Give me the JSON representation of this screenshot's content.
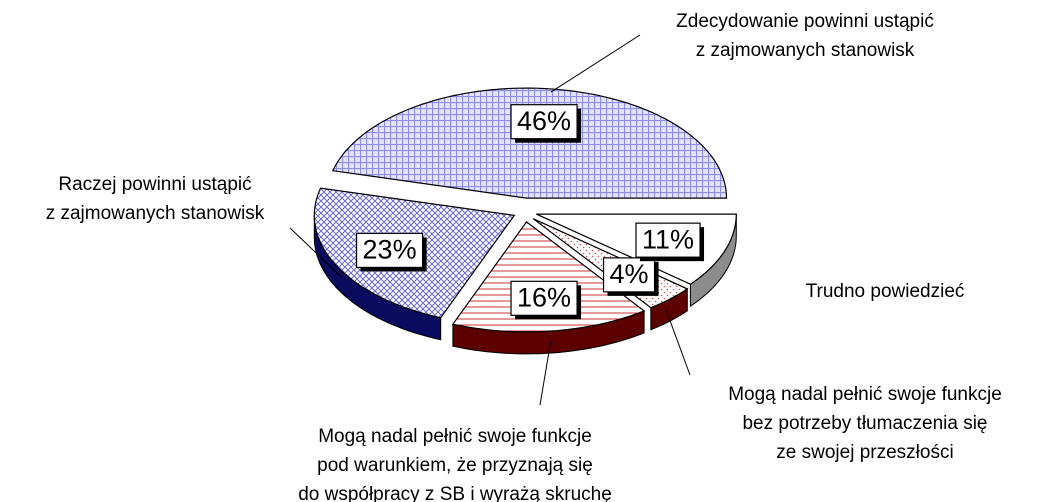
{
  "chart_data": {
    "type": "pie",
    "categories": [
      "Zdecydowanie powinni ustąpić\nz zajmowanych stanowisk",
      "Raczej powinni ustąpić\nz zajmowanych stanowisk",
      "Mogą nadal pełnić swoje funkcje\npod warunkiem, że przyznają się\ndo współpracy z SB i wyrażą skruchę",
      "Mogą nadal pełnić swoje funkcje\nbez potrzeby tłumaczenia się\nze swojej przeszłości",
      "Trudno powiedzieć"
    ],
    "values": [
      46,
      23,
      16,
      4,
      11
    ],
    "value_labels": [
      "46%",
      "23%",
      "16%",
      "4%",
      "11%"
    ],
    "colors": [
      "#8f8fe6",
      "#6f6fcf",
      "#cc3333",
      "#cc5555",
      "#ffffff"
    ],
    "side_colors": [
      "#0a0a5e",
      "#0a0a5e",
      "#5c0000",
      "#5c0000",
      "#8c8c8c"
    ]
  }
}
